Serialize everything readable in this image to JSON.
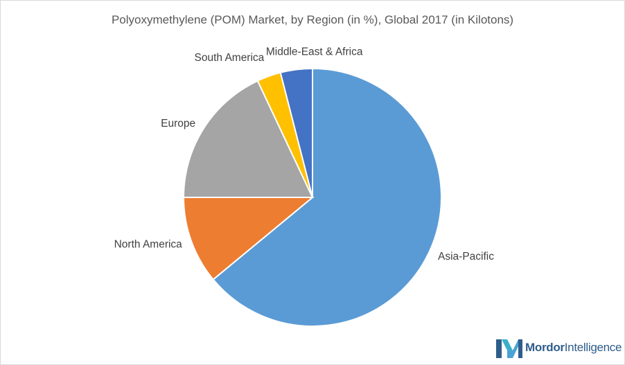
{
  "chart_data": {
    "type": "pie",
    "title": "Polyoxymethylene (POM) Market, by  Region (in %), Global 2017 (in Kilotons)",
    "categories": [
      "Asia-Pacific",
      "North America",
      "Europe",
      "South America",
      "Middle-East & Africa"
    ],
    "values": [
      64,
      11,
      18,
      3,
      4
    ],
    "colors": [
      "#5b9bd5",
      "#ed7d31",
      "#a5a5a5",
      "#ffc000",
      "#4472c4"
    ],
    "start_angle_deg": 0,
    "direction": "clockwise",
    "legend": "none",
    "data_labels": "category names outside slices"
  },
  "brand": {
    "logo_word_1": "Mordor",
    "logo_word_2": "Intelligence",
    "icon": "mordor-intelligence-logo-icon"
  }
}
